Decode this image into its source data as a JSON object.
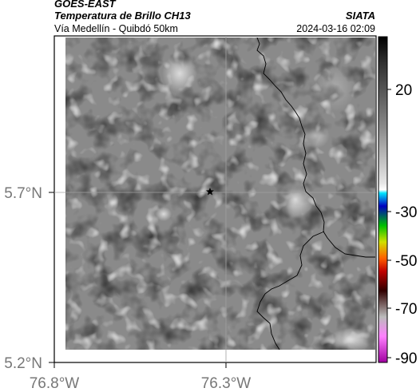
{
  "header": {
    "satellite": "GOES-EAST",
    "product": "Temperatura de Brillo CH13",
    "organization": "SIATA",
    "region": "Vía Medellín - Quibdó 50km",
    "timestamp": "2024-03-16 02:09"
  },
  "map": {
    "lat_ticks": [
      "5.7°N",
      "5.2°N"
    ],
    "lon_ticks": [
      "76.8°W",
      "76.3°W"
    ],
    "marker_icon": "star-icon",
    "colors": {
      "field": "#8a8a8a",
      "grid": "#a0a0a0",
      "border": "#000000"
    }
  },
  "colorbar": {
    "labels": [
      "20",
      "-30",
      "-50",
      "-70",
      "-90"
    ]
  }
}
